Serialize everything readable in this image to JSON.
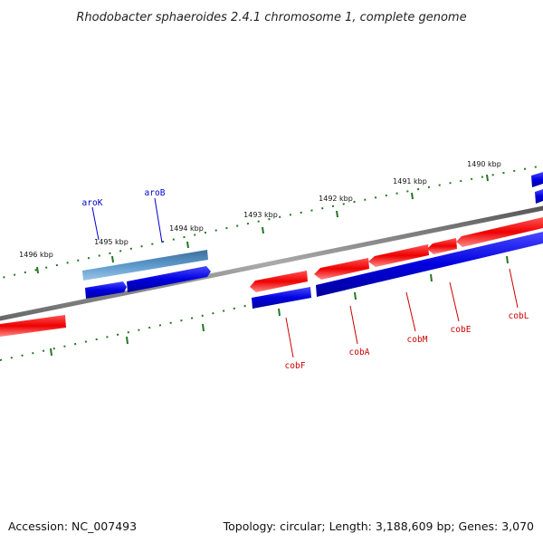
{
  "title": "Rhodobacter sphaeroides 2.4.1 chromosome 1, complete genome",
  "accession": "Accession: NC_007493",
  "topology": "Topology: circular; Length: 3,188,609 bp; Genes: 3,070",
  "colors": {
    "forward_strand": "#0000dd",
    "reverse_strand": "#ee0000",
    "highlight": "#3a7fc0",
    "backbone": "#888888",
    "tick": "#227722",
    "forward_label": "#0000cc",
    "reverse_label": "#cc0000"
  },
  "kbp_labels": [
    "1490 kbp",
    "1491 kbp",
    "1492 kbp",
    "1493 kbp",
    "1494 kbp",
    "1495 kbp",
    "1496 kbp"
  ],
  "genes_forward": [
    {
      "name": "aroK",
      "color": "forward"
    },
    {
      "name": "aroB",
      "color": "forward"
    }
  ],
  "genes_reverse": [
    {
      "name": "cobF",
      "color": "reverse"
    },
    {
      "name": "cobA",
      "color": "reverse"
    },
    {
      "name": "cobM",
      "color": "reverse"
    },
    {
      "name": "cobE",
      "color": "reverse"
    },
    {
      "name": "cobL",
      "color": "reverse"
    }
  ]
}
